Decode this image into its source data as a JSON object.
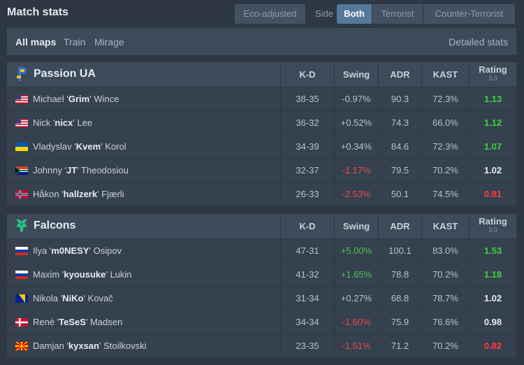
{
  "header": {
    "title": "Match stats",
    "eco_label": "Eco-adjusted",
    "side_label": "Side",
    "sides": [
      "Both",
      "Terrorist",
      "Counter-Terrorist"
    ]
  },
  "maps": {
    "items": [
      "All maps",
      "Train",
      "Mirage"
    ],
    "detailed": "Detailed stats"
  },
  "columns": {
    "kd": "K-D",
    "swing": "Swing",
    "adr": "ADR",
    "kast": "KAST",
    "rating": "Rating",
    "rating_version": "3.0"
  },
  "teams": [
    {
      "name": "Passion UA",
      "players": [
        {
          "first": "Michael '",
          "nick": "Grim",
          "last": "' Wince",
          "flag": "us",
          "kd": "38-35",
          "swing": "-0.97%",
          "adr": "90.3",
          "kast": "72.3%",
          "rating": "1.13"
        },
        {
          "first": "Nick '",
          "nick": "nicx",
          "last": "' Lee",
          "flag": "us",
          "kd": "36-32",
          "swing": "+0.52%",
          "adr": "74.3",
          "kast": "66.0%",
          "rating": "1.12"
        },
        {
          "first": "Vladyslav '",
          "nick": "Kvem",
          "last": "' Korol",
          "flag": "ua",
          "kd": "34-39",
          "swing": "+0.34%",
          "adr": "84.6",
          "kast": "72.3%",
          "rating": "1.07"
        },
        {
          "first": "Johnny '",
          "nick": "JT",
          "last": "' Theodosiou",
          "flag": "za",
          "kd": "32-37",
          "swing": "-1.17%",
          "adr": "79.5",
          "kast": "70.2%",
          "rating": "1.02"
        },
        {
          "first": "Håkon '",
          "nick": "hallzerk",
          "last": "' Fjærli",
          "flag": "no",
          "kd": "26-33",
          "swing": "-2.53%",
          "adr": "50.1",
          "kast": "74.5%",
          "rating": "0.81"
        }
      ]
    },
    {
      "name": "Falcons",
      "players": [
        {
          "first": "Ilya '",
          "nick": "m0NESY",
          "last": "' Osipov",
          "flag": "ru",
          "kd": "47-31",
          "swing": "+5.00%",
          "adr": "100.1",
          "kast": "83.0%",
          "rating": "1.53"
        },
        {
          "first": "Maxim '",
          "nick": "kyousuke",
          "last": "' Lukin",
          "flag": "ru",
          "kd": "41-32",
          "swing": "+1.65%",
          "adr": "78.8",
          "kast": "70.2%",
          "rating": "1.18"
        },
        {
          "first": "Nikola '",
          "nick": "NiKo",
          "last": "' Kovač",
          "flag": "ba",
          "kd": "31-34",
          "swing": "+0.27%",
          "adr": "68.8",
          "kast": "78.7%",
          "rating": "1.02"
        },
        {
          "first": "René '",
          "nick": "TeSeS",
          "last": "' Madsen",
          "flag": "dk",
          "kd": "34-34",
          "swing": "-1.60%",
          "adr": "75.9",
          "kast": "76.6%",
          "rating": "0.98"
        },
        {
          "first": "Damjan '",
          "nick": "kyxsan",
          "last": "' Stoilkovski",
          "flag": "mk",
          "kd": "23-35",
          "swing": "-1.51%",
          "adr": "71.2",
          "kast": "70.2%",
          "rating": "0.82"
        }
      ]
    }
  ]
}
